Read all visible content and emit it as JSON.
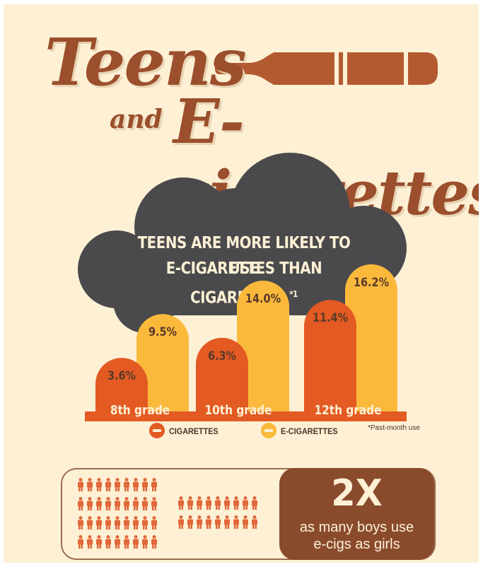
{
  "title": {
    "line1": "Teens",
    "line2_small": "and",
    "line2_big": "E-cigarettes"
  },
  "cloud": {
    "line1": "TEENS ARE MORE LIKELY TO USE",
    "line2": "E-CIGARETTES THAN CIGARETTES.",
    "footnote_marker": "*1"
  },
  "colors": {
    "background": "#fdf0d5",
    "brown": "#9b4f2c",
    "cloud": "#4a4a4c",
    "cigarettes": "#e35a22",
    "e_cigarettes": "#fbb93c"
  },
  "chart_data": {
    "type": "bar",
    "categories": [
      "8th grade",
      "10th grade",
      "12th grade"
    ],
    "series": [
      {
        "name": "CIGARETTES",
        "values": [
          3.6,
          6.3,
          11.4
        ],
        "labels": [
          "3.6%",
          "6.3%",
          "11.4%"
        ]
      },
      {
        "name": "E-CIGARETTES",
        "values": [
          9.5,
          14.0,
          16.2
        ],
        "labels": [
          "9.5%",
          "14.0%",
          "16.2%"
        ]
      }
    ],
    "legend": [
      "CIGARETTES",
      "E-CIGARETTES"
    ],
    "footnote": "*Past-month use"
  },
  "comparison": {
    "icon": "person-icon",
    "boys_icon_count": 36,
    "girls_icon_count": 18,
    "big": "2X",
    "line1": "as many boys use",
    "line2": "e-cigs as girls"
  }
}
